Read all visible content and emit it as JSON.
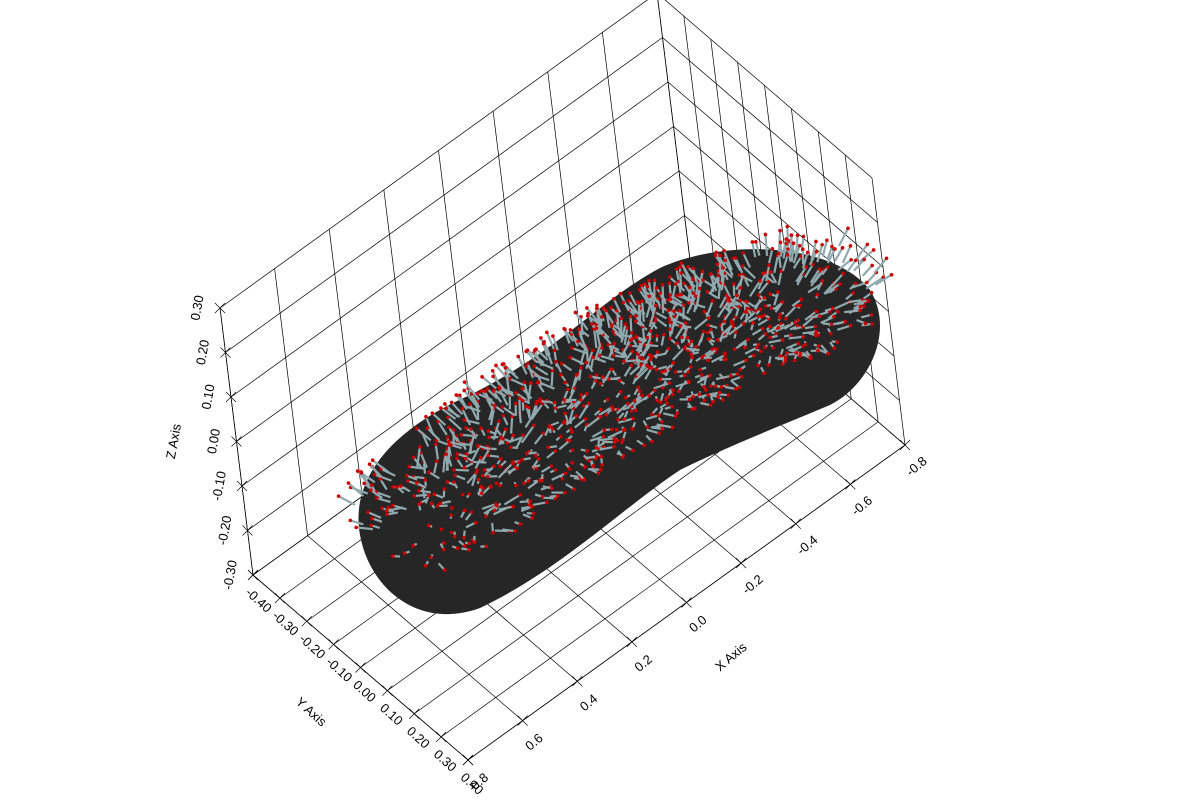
{
  "chart_data": {
    "type": "mesh3d",
    "xlabel": "X Axis",
    "ylabel": "Y Axis",
    "zlabel": "Z Axis",
    "xlim": [
      -0.8,
      0.8
    ],
    "ylim": [
      -0.4,
      0.4
    ],
    "zlim": [
      -0.3,
      0.3
    ],
    "xticks": [
      -0.8,
      -0.6,
      -0.4,
      -0.2,
      {
        "value": 0,
        "label": "0.0"
      },
      0.2,
      0.4,
      0.6,
      0.8
    ],
    "yticks": [
      {
        "value": -0.4,
        "label": "-0.40"
      },
      {
        "value": -0.3,
        "label": "-0.30"
      },
      {
        "value": -0.2,
        "label": "-0.20"
      },
      {
        "value": -0.1,
        "label": "-0.10"
      },
      {
        "value": 0,
        "label": "0.00"
      },
      {
        "value": 0.1,
        "label": "0.10"
      },
      {
        "value": 0.2,
        "label": "0.20"
      },
      {
        "value": 0.3,
        "label": "0.30"
      },
      {
        "value": 0.4,
        "label": "0.40"
      }
    ],
    "zticks": [
      {
        "value": -0.3,
        "label": "-0.30"
      },
      {
        "value": -0.2,
        "label": "-0.20"
      },
      {
        "value": -0.1,
        "label": "-0.10"
      },
      {
        "value": 0,
        "label": "0.00"
      },
      {
        "value": 0.1,
        "label": "0.10"
      },
      {
        "value": 0.2,
        "label": "0.20"
      },
      {
        "value": 0.3,
        "label": "0.30"
      }
    ],
    "grid": true,
    "surface_color": "#262626",
    "normal_color": "#8fa9ae",
    "point_color": "#cc0000"
  }
}
